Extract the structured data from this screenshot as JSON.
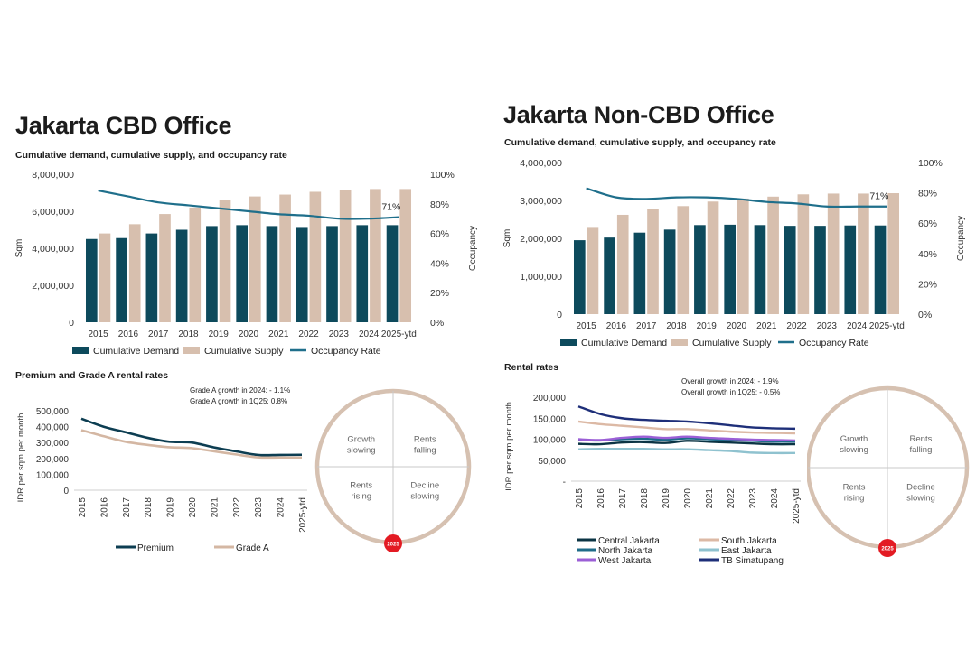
{
  "colors": {
    "demand": "#0d4a5c",
    "supply": "#d7bfae",
    "occupancy": "#1f6f8b",
    "premium": "#0d3e52",
    "grade_a": "#d4b7a3",
    "clock_ring": "#d6c1b1",
    "clock_marker": "#e31b23",
    "central": "#0b3444",
    "north": "#1e6b88",
    "west": "#9b5fd6",
    "south": "#dcb9a5",
    "east": "#8fc2cf",
    "tb": "#1e2f79"
  },
  "cbd": {
    "title": "Jakarta CBD Office",
    "chart_subtitle": "Cumulative demand, cumulative supply, and occupancy rate",
    "rental_subtitle": "Premium and Grade A rental rates",
    "annotation1": "Grade A growth in 2024: - 1.1%",
    "annotation2": "Grade A growth in 1Q25:  0.8%",
    "clock": {
      "q1": "Growth\nslowing",
      "q2": "Rents\nfalling",
      "q3": "Rents\nrising",
      "q4": "Decline\nslowing",
      "marker": "2025"
    }
  },
  "noncbd": {
    "title": "Jakarta Non-CBD Office",
    "chart_subtitle": "Cumulative demand, cumulative supply, and occupancy rate",
    "rental_subtitle": "Rental rates",
    "annotation1": "Overall growth in 2024: - 1.9%",
    "annotation2": "Overall growth in 1Q25: - 0.5%",
    "clock": {
      "q1": "Growth\nslowing",
      "q2": "Rents\nfalling",
      "q3": "Rents\nrising",
      "q4": "Decline\nslowing",
      "marker": "2025"
    }
  },
  "chart_data": [
    {
      "id": "cbd_supply",
      "type": "bar",
      "categories": [
        "2015",
        "2016",
        "2017",
        "2018",
        "2019",
        "2020",
        "2021",
        "2022",
        "2023",
        "2024",
        "2025-ytd"
      ],
      "series": [
        {
          "name": "Cumulative Demand",
          "values": [
            4500000,
            4550000,
            4800000,
            5000000,
            5200000,
            5250000,
            5200000,
            5150000,
            5200000,
            5250000,
            5250000
          ]
        },
        {
          "name": "Cumulative Supply",
          "values": [
            4800000,
            5300000,
            5850000,
            6200000,
            6600000,
            6800000,
            6900000,
            7050000,
            7150000,
            7200000,
            7200000
          ]
        }
      ],
      "line": {
        "name": "Occupancy Rate",
        "axis": "right",
        "values": [
          89,
          85,
          81,
          79,
          77,
          75,
          73,
          72,
          70,
          70,
          71
        ],
        "end_label": "71%"
      },
      "ylabel": "Sqm",
      "y2label": "Occupancy",
      "ylim": [
        0,
        8000000
      ],
      "yticks": [
        "0",
        "2,000,000",
        "4,000,000",
        "6,000,000",
        "8,000,000"
      ],
      "y2lim": [
        0,
        100
      ],
      "y2ticks": [
        "0%",
        "20%",
        "40%",
        "60%",
        "80%",
        "100%"
      ],
      "legend": "bottom"
    },
    {
      "id": "noncbd_supply",
      "type": "bar",
      "categories": [
        "2015",
        "2016",
        "2017",
        "2018",
        "2019",
        "2020",
        "2021",
        "2022",
        "2023",
        "2024",
        "2025-ytd"
      ],
      "series": [
        {
          "name": "Cumulative Demand",
          "values": [
            1950000,
            2020000,
            2150000,
            2230000,
            2350000,
            2360000,
            2350000,
            2330000,
            2330000,
            2340000,
            2340000
          ]
        },
        {
          "name": "Cumulative Supply",
          "values": [
            2300000,
            2620000,
            2780000,
            2850000,
            2970000,
            3050000,
            3100000,
            3160000,
            3180000,
            3180000,
            3190000
          ]
        }
      ],
      "line": {
        "name": "Occupancy Rate",
        "axis": "right",
        "values": [
          83,
          77,
          76,
          77,
          77,
          76,
          74,
          73,
          71,
          71,
          71
        ],
        "end_label": "71%"
      },
      "ylabel": "Sqm",
      "y2label": "Occupancy",
      "ylim": [
        0,
        4000000
      ],
      "yticks": [
        "0",
        "1,000,000",
        "2,000,000",
        "3,000,000",
        "4,000,000"
      ],
      "y2lim": [
        0,
        100
      ],
      "y2ticks": [
        "0%",
        "20%",
        "40%",
        "60%",
        "80%",
        "100%"
      ],
      "legend": "bottom"
    },
    {
      "id": "cbd_rent",
      "type": "line",
      "categories": [
        "2015",
        "2016",
        "2017",
        "2018",
        "2019",
        "2020",
        "2021",
        "2022",
        "2023",
        "2024",
        "2025-ytd"
      ],
      "series": [
        {
          "name": "Premium",
          "values": [
            450000,
            400000,
            365000,
            330000,
            305000,
            300000,
            270000,
            245000,
            222000,
            222000,
            223000
          ]
        },
        {
          "name": "Grade A",
          "values": [
            378000,
            340000,
            305000,
            285000,
            270000,
            265000,
            245000,
            225000,
            207000,
            206000,
            206000
          ]
        }
      ],
      "ylabel": "IDR per sqm per month",
      "ylim": [
        0,
        500000
      ],
      "yticks": [
        "0",
        "100,000",
        "200,000",
        "300,000",
        "400,000",
        "500,000"
      ],
      "legend": "bottom"
    },
    {
      "id": "noncbd_rent",
      "type": "line",
      "categories": [
        "2015",
        "2016",
        "2017",
        "2018",
        "2019",
        "2020",
        "2021",
        "2022",
        "2023",
        "2024",
        "2025-ytd"
      ],
      "series": [
        {
          "name": "Central Jakarta",
          "values": [
            89000,
            88000,
            92000,
            93000,
            91000,
            96000,
            94000,
            92000,
            90000,
            88000,
            88000
          ]
        },
        {
          "name": "South Jakarta",
          "values": [
            142000,
            136000,
            132000,
            128000,
            124000,
            124000,
            121000,
            118000,
            116000,
            115000,
            114000
          ]
        },
        {
          "name": "North Jakarta",
          "values": [
            98000,
            97000,
            100000,
            101000,
            99000,
            102000,
            100000,
            98000,
            96000,
            94000,
            94000
          ]
        },
        {
          "name": "East  Jakarta",
          "values": [
            76000,
            77000,
            77000,
            77000,
            76000,
            76000,
            74000,
            72000,
            68000,
            67000,
            67000
          ]
        },
        {
          "name": "West Jakarta",
          "values": [
            100000,
            98000,
            103000,
            106000,
            103000,
            106000,
            103000,
            101000,
            99000,
            98000,
            97000
          ]
        },
        {
          "name": "TB Simatupang",
          "values": [
            178000,
            160000,
            150000,
            146000,
            144000,
            142000,
            138000,
            133000,
            128000,
            126000,
            125000
          ]
        }
      ],
      "ylabel": "IDR per sqm per month",
      "ylim": [
        0,
        200000
      ],
      "yticks": [
        "-",
        "50,000",
        "100,000",
        "150,000",
        "200,000"
      ],
      "legend": "bottom"
    }
  ]
}
